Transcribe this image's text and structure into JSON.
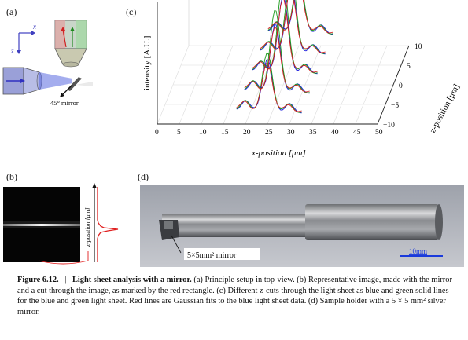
{
  "panels": {
    "a": {
      "label": "(a)",
      "axis_x": "x",
      "axis_z": "z",
      "mirror_label": "45° mirror"
    },
    "b": {
      "label": "(b)",
      "axis_label": "z-position [μm]"
    },
    "c": {
      "label": "(c)"
    },
    "d": {
      "label": "(d)",
      "mirror_label": "5×5mm² mirror",
      "scale_label": "10mm"
    }
  },
  "chart_data": {
    "type": "line",
    "title": "",
    "xlabel": "x-position [μm]",
    "ylabel": "intensity [A.U.]",
    "zlabel": "z-position [μm]",
    "x_ticks": [
      0,
      5,
      10,
      15,
      20,
      25,
      30,
      35,
      40,
      45,
      50
    ],
    "z_ticks": [
      -10,
      -5,
      0,
      5,
      10
    ],
    "xlim": [
      0,
      50
    ],
    "zlim": [
      -10,
      10
    ],
    "peak_positions_z": [
      -10,
      -5,
      0,
      5,
      10
    ],
    "series": [
      {
        "color": "#1a1adc",
        "relative_peak_heights": [
          0.55,
          0.72,
          0.82,
          0.72,
          0.55
        ]
      },
      {
        "color": "#1a9a1a",
        "relative_peak_heights": [
          0.62,
          0.88,
          1.0,
          0.88,
          0.62
        ]
      },
      {
        "color": "#d42020",
        "relative_peak_heights": [
          0.52,
          0.7,
          0.8,
          0.7,
          0.52
        ]
      }
    ]
  },
  "caption": {
    "figure": "Figure 6.12.",
    "separator": "|",
    "title": "Light sheet analysis with a mirror.",
    "body": " (a) Principle setup in top-view. (b) Representative image, made with the mirror and a cut through the image, as marked by the red rectangle. (c) Different z-cuts through the light sheet as blue and green solid lines for the blue and green light sheet. Red lines are Gaussian fits to the blue light sheet data. (d) Sample holder with a 5 × 5 mm² silver mirror."
  }
}
